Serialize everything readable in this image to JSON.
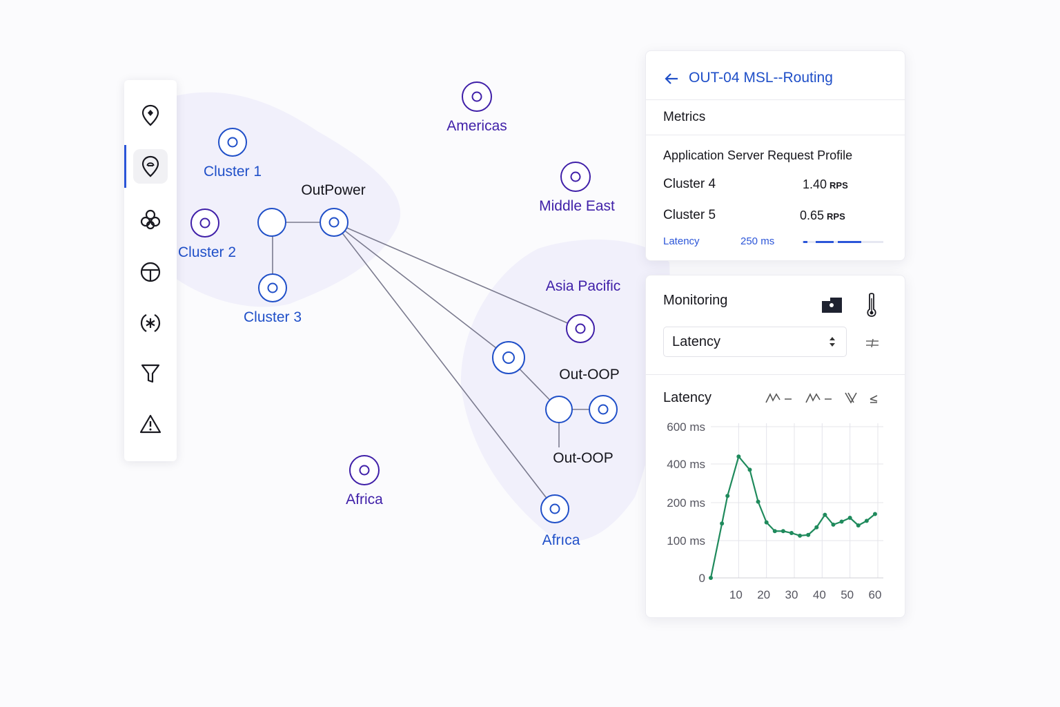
{
  "map": {
    "nodes": [
      {
        "id": "cluster1",
        "label": "Cluster 1",
        "tone": "blue"
      },
      {
        "id": "cluster2",
        "label": "Cluster 2",
        "tone": "purple"
      },
      {
        "id": "cluster3",
        "label": "Cluster 3",
        "tone": "blue"
      },
      {
        "id": "outpower",
        "label": "OutPower",
        "tone": "dark"
      },
      {
        "id": "americas",
        "label": "Americas",
        "tone": "purple"
      },
      {
        "id": "middle_east",
        "label": "Middle East",
        "tone": "purple"
      },
      {
        "id": "asia_pacific",
        "label": "Asia Pacific",
        "tone": "purple"
      },
      {
        "id": "out_oop_1",
        "label": "Out-OOP",
        "tone": "dark"
      },
      {
        "id": "out_oop_2",
        "label": "Out-OOP",
        "tone": "dark"
      },
      {
        "id": "africa_1",
        "label": "Africa",
        "tone": "purple"
      },
      {
        "id": "africa_2",
        "label": "Afrıca",
        "tone": "blue"
      }
    ]
  },
  "sidebar": {
    "items": [
      {
        "icon": "location-pin-icon",
        "active": false
      },
      {
        "icon": "location-pin-outline-icon",
        "active": true
      },
      {
        "icon": "cluster-icon",
        "active": false
      },
      {
        "icon": "globe-segment-icon",
        "active": false
      },
      {
        "icon": "asterisk-circle-icon",
        "active": false
      },
      {
        "icon": "filter-icon",
        "active": false
      },
      {
        "icon": "warning-icon",
        "active": false
      }
    ]
  },
  "routing_panel": {
    "title": "OUT-04 MSL--Routing",
    "section": "Metrics",
    "subtitle": "Application Server Request Profile",
    "rows": [
      {
        "name": "Cluster 4",
        "value": "1.40",
        "unit": "RPS"
      },
      {
        "name": "Cluster 5",
        "value": "0.65",
        "unit": "RPS"
      }
    ],
    "latency_label": "Latency",
    "latency_value": "250 ms"
  },
  "monitoring_panel": {
    "title": "Monitoring",
    "select_value": "Latency",
    "chart_title": "Latency"
  },
  "colors": {
    "accent": "#1f4fc8",
    "purple": "#3f1fa8",
    "series": "#1f8a5c"
  },
  "chart_data": {
    "type": "line",
    "title": "Latency",
    "xlabel": "",
    "ylabel": "",
    "x_ticks": [
      "10",
      "20",
      "30",
      "40",
      "50",
      "60"
    ],
    "y_ticks": [
      "0",
      "100 ms",
      "200 ms",
      "400 ms",
      "600 ms"
    ],
    "series": [
      {
        "values": [
          [
            0,
            0
          ],
          [
            4,
            145
          ],
          [
            6,
            235
          ],
          [
            10,
            440
          ],
          [
            14,
            370
          ],
          [
            17,
            205
          ],
          [
            20,
            148
          ],
          [
            23,
            125
          ],
          [
            26,
            125
          ],
          [
            29,
            120
          ],
          [
            32,
            113
          ],
          [
            35,
            115
          ],
          [
            38,
            135
          ],
          [
            41,
            168
          ],
          [
            44,
            142
          ],
          [
            47,
            150
          ],
          [
            50,
            160
          ],
          [
            53,
            140
          ],
          [
            56,
            152
          ],
          [
            59,
            170
          ]
        ]
      }
    ]
  }
}
